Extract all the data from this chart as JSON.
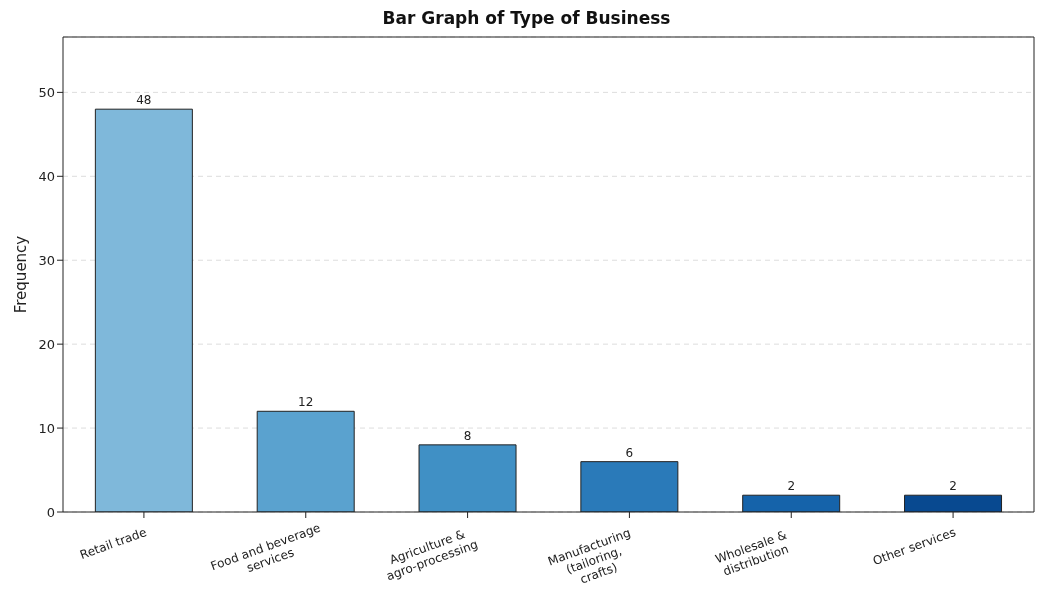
{
  "chart_data": {
    "type": "bar",
    "title": "Bar Graph of Type of Business",
    "ylabel": "Frequency",
    "categories": [
      "Retail trade",
      "Food and beverage\nservices",
      "Agriculture &\nagro-processing",
      "Manufacturing\n(tailoring,\ncrafts)",
      "Wholesale &\ndistribution",
      "Other services"
    ],
    "values": [
      48,
      12,
      8,
      6,
      2,
      2
    ],
    "colors": [
      "#7fb8da",
      "#5aa2cf",
      "#4090c5",
      "#2a7ab9",
      "#1563aa",
      "#084990"
    ],
    "ylim": [
      0,
      56.6
    ],
    "yticks": [
      0,
      10,
      20,
      30,
      40,
      50
    ],
    "grid": "y",
    "data_labels": true
  }
}
